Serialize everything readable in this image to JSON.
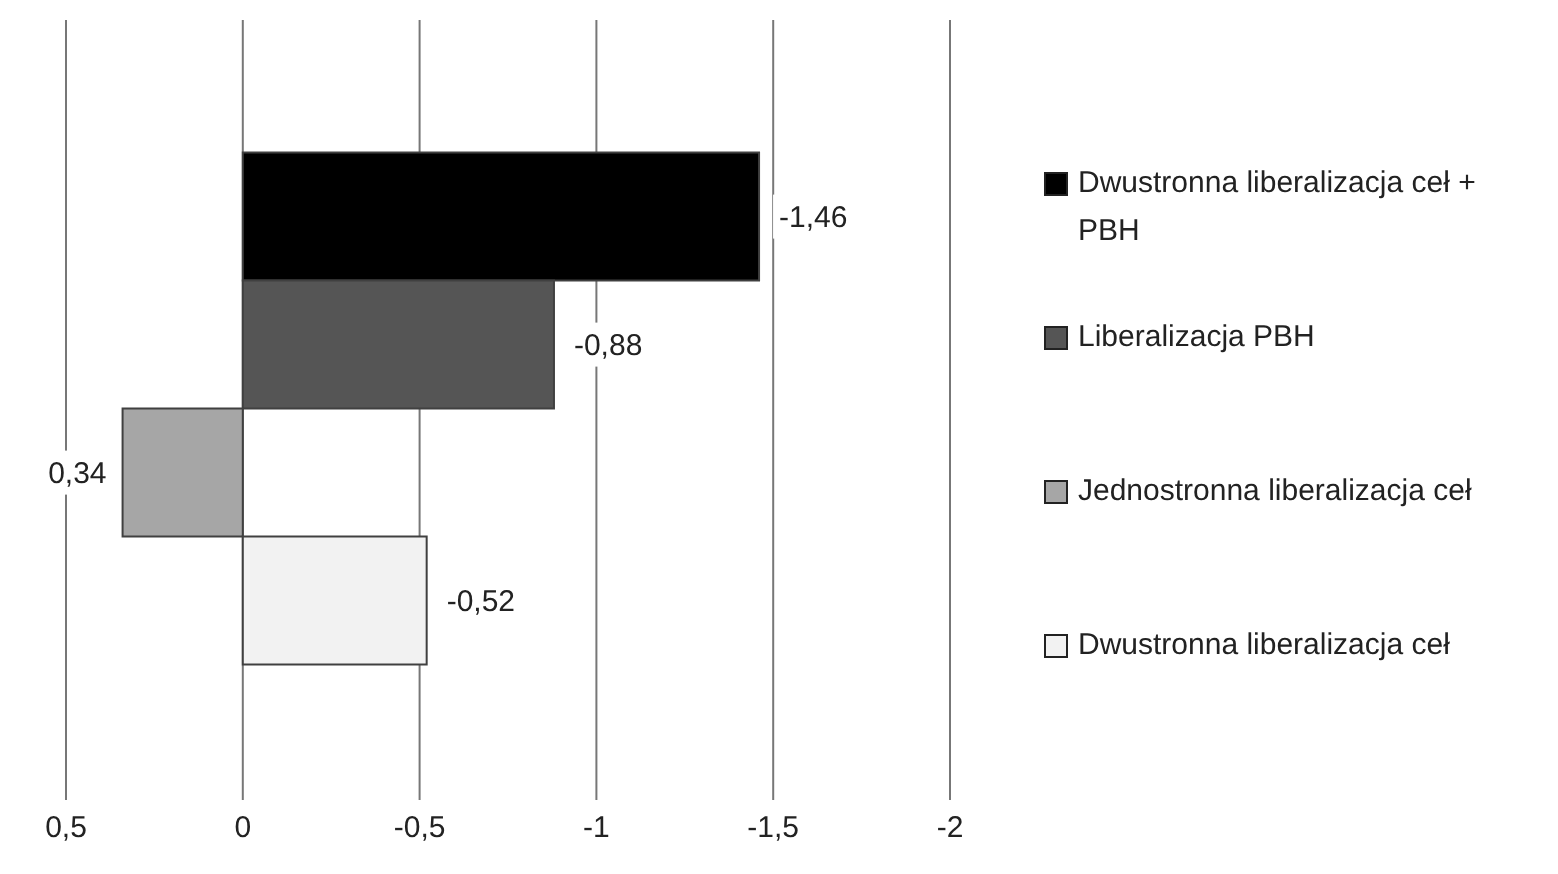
{
  "chart_data": {
    "type": "bar",
    "orientation": "horizontal",
    "categories": [
      null
    ],
    "series": [
      {
        "name": "Dwustronna liberalizacja ceł + PBH",
        "color": "#000000",
        "values": [
          -1.46
        ],
        "value_labels": [
          "-1,46"
        ]
      },
      {
        "name": "Liberalizacja PBH",
        "color": "#555555",
        "values": [
          -0.88
        ],
        "value_labels": [
          "-0,88"
        ]
      },
      {
        "name": "Jednostronna liberalizacja ceł",
        "color": "#a6a6a6",
        "values": [
          0.34
        ],
        "value_labels": [
          "0,34"
        ]
      },
      {
        "name": "Dwustronna liberalizacja ceł",
        "color": "#f2f2f2",
        "values": [
          -0.52
        ],
        "value_labels": [
          "-0,52"
        ]
      }
    ],
    "xlim": [
      0.5,
      -2
    ],
    "xticks": [
      {
        "value": 0.5,
        "label": "0,5"
      },
      {
        "value": 0,
        "label": "0"
      },
      {
        "value": -0.5,
        "label": "-0,5"
      },
      {
        "value": -1,
        "label": "-1"
      },
      {
        "value": -1.5,
        "label": "-1,5"
      },
      {
        "value": -2,
        "label": "-2"
      }
    ],
    "grid": "x",
    "legend": "right"
  }
}
